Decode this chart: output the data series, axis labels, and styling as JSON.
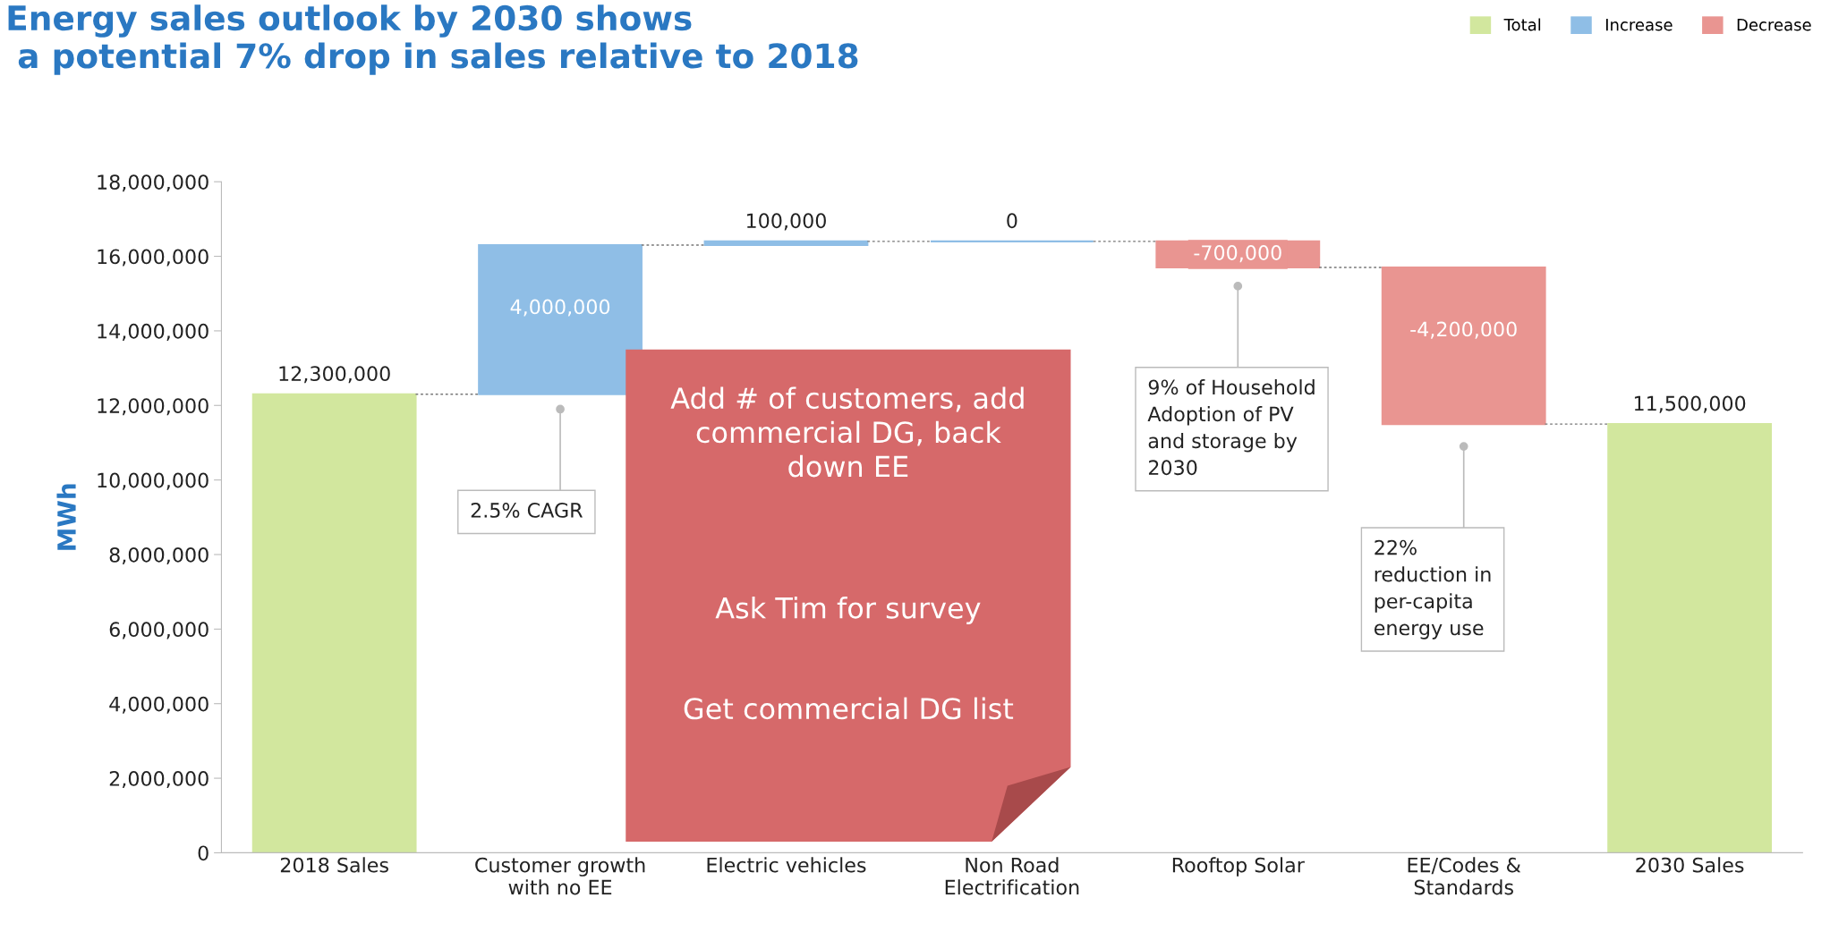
{
  "chart_data": {
    "type": "bar",
    "title": "Energy sales outlook by 2030 shows\n a potential 7% drop in sales relative to 2018",
    "ylabel": "MWh",
    "categories": [
      "2018 Sales",
      "Customer growth\nwith no EE",
      "Electric vehicles",
      "Non Road\nElectrification",
      "Rooftop Solar",
      "EE/Codes &\nStandards",
      "2030 Sales"
    ],
    "series": [
      {
        "name": "Total",
        "color": "#d2e79e",
        "values": [
          12300000,
          null,
          null,
          null,
          null,
          null,
          11500000
        ],
        "base": [
          0,
          null,
          null,
          null,
          null,
          null,
          0
        ],
        "value_labels": [
          "12,300,000",
          null,
          null,
          null,
          null,
          null,
          "11,500,000"
        ]
      },
      {
        "name": "Increase",
        "color": "#8fbee6",
        "values": [
          null,
          4000000,
          100000,
          0,
          null,
          null,
          null
        ],
        "base": [
          null,
          12300000,
          16300000,
          16400000,
          null,
          null,
          null
        ],
        "value_labels": [
          null,
          "4,000,000",
          "100,000",
          "0",
          null,
          null,
          null
        ]
      },
      {
        "name": "Decrease",
        "color": "#e99591",
        "values": [
          null,
          null,
          null,
          null,
          -700000,
          -4200000,
          null
        ],
        "base": [
          null,
          null,
          null,
          null,
          16400000,
          15700000,
          null
        ],
        "value_labels": [
          null,
          null,
          null,
          null,
          "-700,000",
          "-4,200,000",
          null
        ]
      }
    ],
    "ylim": [
      0,
      18000000
    ],
    "yticks": [
      {
        "value": 0,
        "label": "0"
      },
      {
        "value": 2000000,
        "label": "2,000,000"
      },
      {
        "value": 4000000,
        "label": "4,000,000"
      },
      {
        "value": 6000000,
        "label": "6,000,000"
      },
      {
        "value": 8000000,
        "label": "8,000,000"
      },
      {
        "value": 10000000,
        "label": "10,000,000"
      },
      {
        "value": 12000000,
        "label": "12,000,000"
      },
      {
        "value": 14000000,
        "label": "14,000,000"
      },
      {
        "value": 16000000,
        "label": "16,000,000"
      },
      {
        "value": 18000000,
        "label": "18,000,000"
      }
    ],
    "grid": false,
    "legend": "top right",
    "annotations": [
      {
        "text": "2.5% CAGR",
        "x": "Customer growth\nwith no EE",
        "y": 11900000
      },
      {
        "text": "9% of Household\nAdoption of PV\nand storage by\n2030",
        "x": "Rooftop Solar",
        "y": 15200000
      },
      {
        "text": "22%\nreduction in\nper-capita\nenergy use",
        "x": "EE/Codes &\nStandards",
        "y": 10900000
      },
      "Add # of customers, add\ncommercial DG, back\ndown EE",
      "Ask Tim for survey",
      "Get commercial DG list"
    ]
  }
}
